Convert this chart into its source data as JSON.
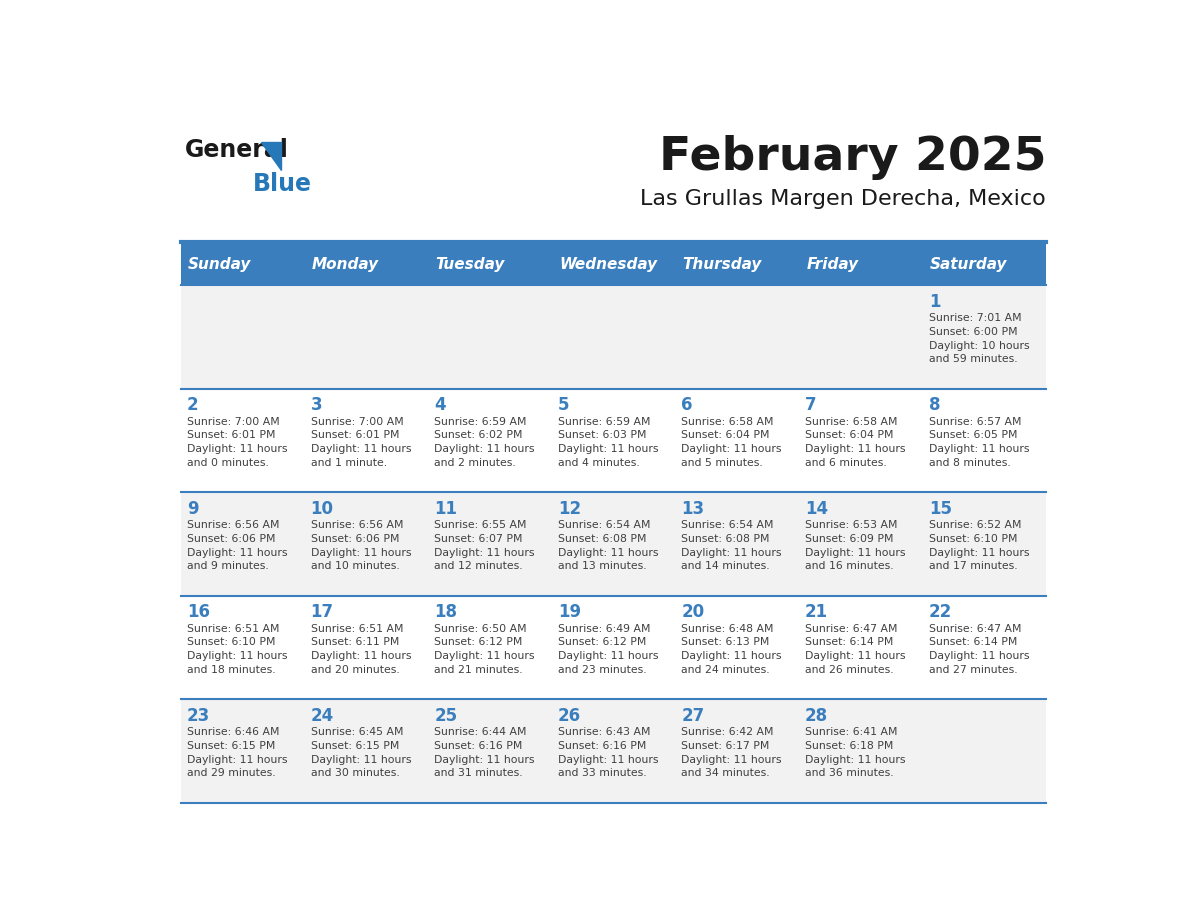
{
  "title": "February 2025",
  "subtitle": "Las Grullas Margen Derecha, Mexico",
  "days_of_week": [
    "Sunday",
    "Monday",
    "Tuesday",
    "Wednesday",
    "Thursday",
    "Friday",
    "Saturday"
  ],
  "header_bg": "#3A7EBD",
  "header_text": "#FFFFFF",
  "row_bg_odd": "#F2F2F2",
  "row_bg_even": "#FFFFFF",
  "separator_color": "#3A7EBD",
  "day_number_color": "#3A7EBD",
  "text_color": "#404040",
  "title_color": "#1A1A1A",
  "logo_general_color": "#1A1A1A",
  "logo_blue_color": "#2778B8",
  "calendar_data": [
    [
      {
        "day": "",
        "info": ""
      },
      {
        "day": "",
        "info": ""
      },
      {
        "day": "",
        "info": ""
      },
      {
        "day": "",
        "info": ""
      },
      {
        "day": "",
        "info": ""
      },
      {
        "day": "",
        "info": ""
      },
      {
        "day": "1",
        "info": "Sunrise: 7:01 AM\nSunset: 6:00 PM\nDaylight: 10 hours\nand 59 minutes."
      }
    ],
    [
      {
        "day": "2",
        "info": "Sunrise: 7:00 AM\nSunset: 6:01 PM\nDaylight: 11 hours\nand 0 minutes."
      },
      {
        "day": "3",
        "info": "Sunrise: 7:00 AM\nSunset: 6:01 PM\nDaylight: 11 hours\nand 1 minute."
      },
      {
        "day": "4",
        "info": "Sunrise: 6:59 AM\nSunset: 6:02 PM\nDaylight: 11 hours\nand 2 minutes."
      },
      {
        "day": "5",
        "info": "Sunrise: 6:59 AM\nSunset: 6:03 PM\nDaylight: 11 hours\nand 4 minutes."
      },
      {
        "day": "6",
        "info": "Sunrise: 6:58 AM\nSunset: 6:04 PM\nDaylight: 11 hours\nand 5 minutes."
      },
      {
        "day": "7",
        "info": "Sunrise: 6:58 AM\nSunset: 6:04 PM\nDaylight: 11 hours\nand 6 minutes."
      },
      {
        "day": "8",
        "info": "Sunrise: 6:57 AM\nSunset: 6:05 PM\nDaylight: 11 hours\nand 8 minutes."
      }
    ],
    [
      {
        "day": "9",
        "info": "Sunrise: 6:56 AM\nSunset: 6:06 PM\nDaylight: 11 hours\nand 9 minutes."
      },
      {
        "day": "10",
        "info": "Sunrise: 6:56 AM\nSunset: 6:06 PM\nDaylight: 11 hours\nand 10 minutes."
      },
      {
        "day": "11",
        "info": "Sunrise: 6:55 AM\nSunset: 6:07 PM\nDaylight: 11 hours\nand 12 minutes."
      },
      {
        "day": "12",
        "info": "Sunrise: 6:54 AM\nSunset: 6:08 PM\nDaylight: 11 hours\nand 13 minutes."
      },
      {
        "day": "13",
        "info": "Sunrise: 6:54 AM\nSunset: 6:08 PM\nDaylight: 11 hours\nand 14 minutes."
      },
      {
        "day": "14",
        "info": "Sunrise: 6:53 AM\nSunset: 6:09 PM\nDaylight: 11 hours\nand 16 minutes."
      },
      {
        "day": "15",
        "info": "Sunrise: 6:52 AM\nSunset: 6:10 PM\nDaylight: 11 hours\nand 17 minutes."
      }
    ],
    [
      {
        "day": "16",
        "info": "Sunrise: 6:51 AM\nSunset: 6:10 PM\nDaylight: 11 hours\nand 18 minutes."
      },
      {
        "day": "17",
        "info": "Sunrise: 6:51 AM\nSunset: 6:11 PM\nDaylight: 11 hours\nand 20 minutes."
      },
      {
        "day": "18",
        "info": "Sunrise: 6:50 AM\nSunset: 6:12 PM\nDaylight: 11 hours\nand 21 minutes."
      },
      {
        "day": "19",
        "info": "Sunrise: 6:49 AM\nSunset: 6:12 PM\nDaylight: 11 hours\nand 23 minutes."
      },
      {
        "day": "20",
        "info": "Sunrise: 6:48 AM\nSunset: 6:13 PM\nDaylight: 11 hours\nand 24 minutes."
      },
      {
        "day": "21",
        "info": "Sunrise: 6:47 AM\nSunset: 6:14 PM\nDaylight: 11 hours\nand 26 minutes."
      },
      {
        "day": "22",
        "info": "Sunrise: 6:47 AM\nSunset: 6:14 PM\nDaylight: 11 hours\nand 27 minutes."
      }
    ],
    [
      {
        "day": "23",
        "info": "Sunrise: 6:46 AM\nSunset: 6:15 PM\nDaylight: 11 hours\nand 29 minutes."
      },
      {
        "day": "24",
        "info": "Sunrise: 6:45 AM\nSunset: 6:15 PM\nDaylight: 11 hours\nand 30 minutes."
      },
      {
        "day": "25",
        "info": "Sunrise: 6:44 AM\nSunset: 6:16 PM\nDaylight: 11 hours\nand 31 minutes."
      },
      {
        "day": "26",
        "info": "Sunrise: 6:43 AM\nSunset: 6:16 PM\nDaylight: 11 hours\nand 33 minutes."
      },
      {
        "day": "27",
        "info": "Sunrise: 6:42 AM\nSunset: 6:17 PM\nDaylight: 11 hours\nand 34 minutes."
      },
      {
        "day": "28",
        "info": "Sunrise: 6:41 AM\nSunset: 6:18 PM\nDaylight: 11 hours\nand 36 minutes."
      },
      {
        "day": "",
        "info": ""
      }
    ]
  ]
}
